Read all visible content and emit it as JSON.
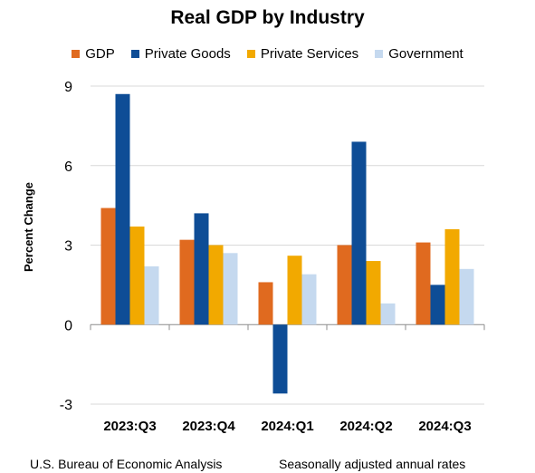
{
  "chart_data": {
    "type": "bar",
    "title": "Real GDP by Industry",
    "ylabel": "Percent Change",
    "xlabel": "",
    "ylim": [
      -3,
      9
    ],
    "yticks": [
      -3,
      0,
      3,
      6,
      9
    ],
    "categories": [
      "2023:Q3",
      "2023:Q4",
      "2024:Q1",
      "2024:Q2",
      "2024:Q3"
    ],
    "series": [
      {
        "name": "GDP",
        "color": "#e06a1f",
        "values": [
          4.4,
          3.2,
          1.6,
          3.0,
          3.1
        ]
      },
      {
        "name": "Private Goods",
        "color": "#0e4d96",
        "values": [
          8.7,
          4.2,
          -2.6,
          6.9,
          1.5
        ]
      },
      {
        "name": "Private Services",
        "color": "#f2a900",
        "values": [
          3.7,
          3.0,
          2.6,
          2.4,
          3.6
        ]
      },
      {
        "name": "Government",
        "color": "#c5d9ef",
        "values": [
          2.2,
          2.7,
          1.9,
          0.8,
          2.1
        ]
      }
    ],
    "grid": true,
    "legend": "top"
  },
  "footer": {
    "source": "U.S. Bureau of Economic Analysis",
    "note": "Seasonally adjusted annual rates"
  }
}
